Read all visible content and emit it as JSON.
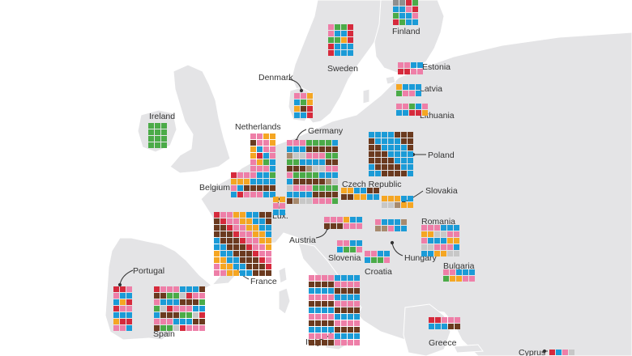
{
  "map": {
    "colors": {
      "water": "#ffffff",
      "land": "#e4e4e6",
      "border": "#ffffff",
      "arrow": "#333333"
    },
    "party_colors": {
      "red": "#d62a3c",
      "pink": "#ee7fa8",
      "green": "#4bab48",
      "orange": "#f5a623",
      "blue": "#1b9bd7",
      "brown": "#6b3a1f",
      "tan": "#a78a6e",
      "gray": "#8f8f8f",
      "lightgray": "#c7c7c7"
    },
    "countries": [
      {
        "name": "Finland",
        "seats": "yyrgbbprgbbprgbb"
      },
      {
        "name": "Sweden",
        "seats": "pggrpbbrggorrbbbrbbb"
      },
      {
        "name": "Estonia",
        "seats": "ppbbrr"
      },
      {
        "name": "Latvia",
        "seats": "obbbgppb"
      },
      {
        "name": "Lithuania",
        "seats": "ppgbpbbrro"
      },
      {
        "name": "Denmark",
        "seats": "ppobgoodrbbr"
      },
      {
        "name": "Ireland",
        "seats": "ggggggggggg"
      },
      {
        "name": "Netherlands",
        "seats": "ppoodppoobpporbppogbpppbbpbb"
      },
      {
        "name": "Germany",
        "seats": "pppggggbbbbdddddtll"
      },
      {
        "name": "Belgium",
        "seats": "rpppbbgooobbbbpbdddddb"
      },
      {
        "name": "Lux.",
        "seats": "ooppbb"
      },
      {
        "name": "Poland",
        "seats": "bbbbdddd"
      },
      {
        "name": "Czech Republic",
        "seats": "oobbdddd"
      },
      {
        "name": "Slovakia",
        "seats": "ooobbllt"
      },
      {
        "name": "France",
        "seats": "rppoobbddd"
      },
      {
        "name": "Austria",
        "seats": "pppobbddd"
      },
      {
        "name": "Hungary",
        "seats": "pbbbttt"
      },
      {
        "name": "Romania",
        "seats": "pppbbbooll"
      },
      {
        "name": "Slovenia",
        "seats": "ppbbbgg"
      },
      {
        "name": "Croatia",
        "seats": "ppbbbgg"
      },
      {
        "name": "Bulgaria",
        "seats": "ppbbbgoo"
      },
      {
        "name": "Portugal",
        "seats": "rrppbbbo"
      },
      {
        "name": "Spain",
        "seats": "rpppbbbdddggl"
      },
      {
        "name": "Italy",
        "seats": "ppppbbbbdddd"
      },
      {
        "name": "Greece",
        "seats": "rrpppbbbdd"
      },
      {
        "name": "Cyprus",
        "seats": "rbpl"
      }
    ]
  }
}
